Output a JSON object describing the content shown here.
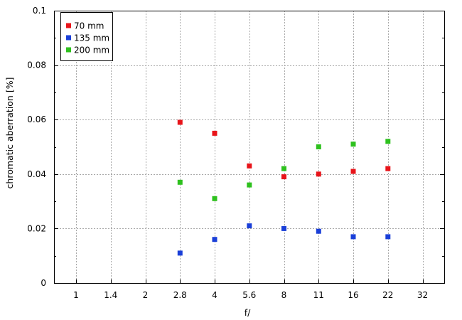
{
  "chart_data": {
    "type": "scatter",
    "title": "",
    "xlabel": "f/",
    "ylabel": "chromatic  aberration [%]",
    "categories": [
      "1",
      "1.4",
      "2",
      "2.8",
      "4",
      "5.6",
      "8",
      "11",
      "16",
      "22",
      "32"
    ],
    "ylim": [
      0,
      0.1
    ],
    "yticks": [
      "0",
      "0.02",
      "0.04",
      "0.06",
      "0.08",
      "0.1"
    ],
    "yminor_ticks": [
      0.01,
      0.03,
      0.05,
      0.07,
      0.09
    ],
    "grid": true,
    "legend_position": "top-left",
    "series": [
      {
        "name": "70 mm",
        "color": "#e8141a",
        "points": [
          {
            "x": "2.8",
            "y": 0.059
          },
          {
            "x": "4",
            "y": 0.055
          },
          {
            "x": "5.6",
            "y": 0.043
          },
          {
            "x": "8",
            "y": 0.039
          },
          {
            "x": "11",
            "y": 0.04
          },
          {
            "x": "16",
            "y": 0.041
          },
          {
            "x": "22",
            "y": 0.042
          }
        ]
      },
      {
        "name": "135 mm",
        "color": "#1a3fd8",
        "points": [
          {
            "x": "2.8",
            "y": 0.011
          },
          {
            "x": "4",
            "y": 0.016
          },
          {
            "x": "5.6",
            "y": 0.021
          },
          {
            "x": "8",
            "y": 0.02
          },
          {
            "x": "11",
            "y": 0.019
          },
          {
            "x": "16",
            "y": 0.017
          },
          {
            "x": "22",
            "y": 0.017
          }
        ]
      },
      {
        "name": "200 mm",
        "color": "#2ec11e",
        "points": [
          {
            "x": "2.8",
            "y": 0.037
          },
          {
            "x": "4",
            "y": 0.031
          },
          {
            "x": "5.6",
            "y": 0.036
          },
          {
            "x": "8",
            "y": 0.042
          },
          {
            "x": "11",
            "y": 0.05
          },
          {
            "x": "16",
            "y": 0.051
          },
          {
            "x": "22",
            "y": 0.052
          }
        ]
      }
    ]
  }
}
